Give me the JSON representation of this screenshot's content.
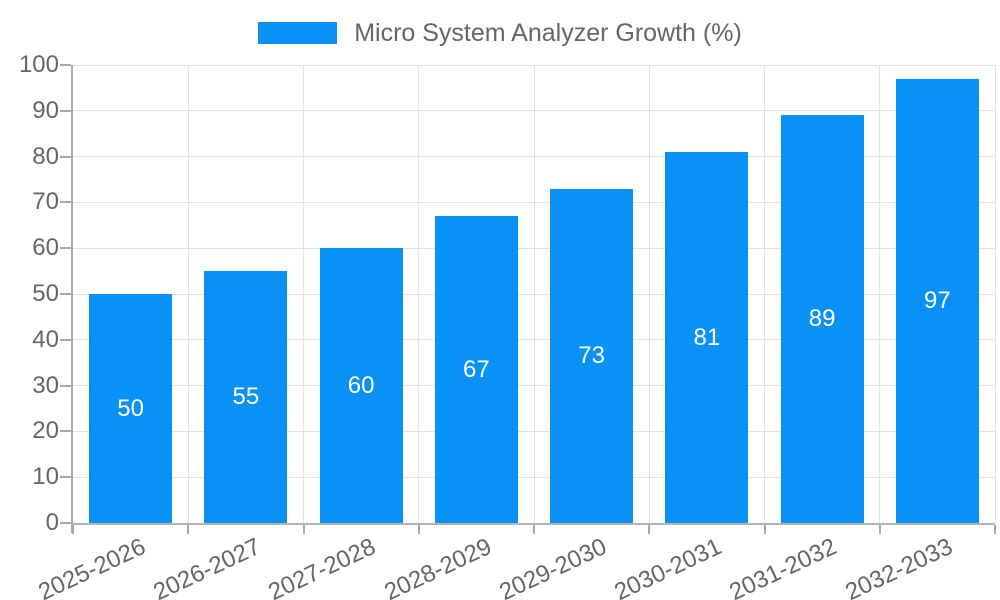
{
  "legend": {
    "label": "Micro System Analyzer Growth (%)"
  },
  "colors": {
    "bar": "#0A91F5",
    "grid": "#E3E3E3",
    "axis": "#A9A9A9",
    "tick_text": "#666666",
    "legend_text": "#666666",
    "value_label": "#FFFFFF",
    "background": "#FFFFFF"
  },
  "chart_data": {
    "type": "bar",
    "title": "Micro System Analyzer Growth (%)",
    "categories": [
      "2025-2026",
      "2026-2027",
      "2027-2028",
      "2028-2029",
      "2029-2030",
      "2030-2031",
      "2031-2032",
      "2032-2033"
    ],
    "values": [
      50,
      55,
      60,
      67,
      73,
      81,
      89,
      97
    ],
    "bar_value_labels": [
      "50",
      "55",
      "60",
      "67",
      "73",
      "81",
      "89",
      "97"
    ],
    "xlabel": "",
    "ylabel": "",
    "ylim": [
      0,
      100
    ],
    "yticks": [
      0,
      10,
      20,
      30,
      40,
      50,
      60,
      70,
      80,
      90,
      100
    ],
    "grid": true,
    "legend_position": "top",
    "bar_color": "#0A91F5",
    "value_labels_inside_bars": true,
    "x_label_rotation_deg": -25
  }
}
